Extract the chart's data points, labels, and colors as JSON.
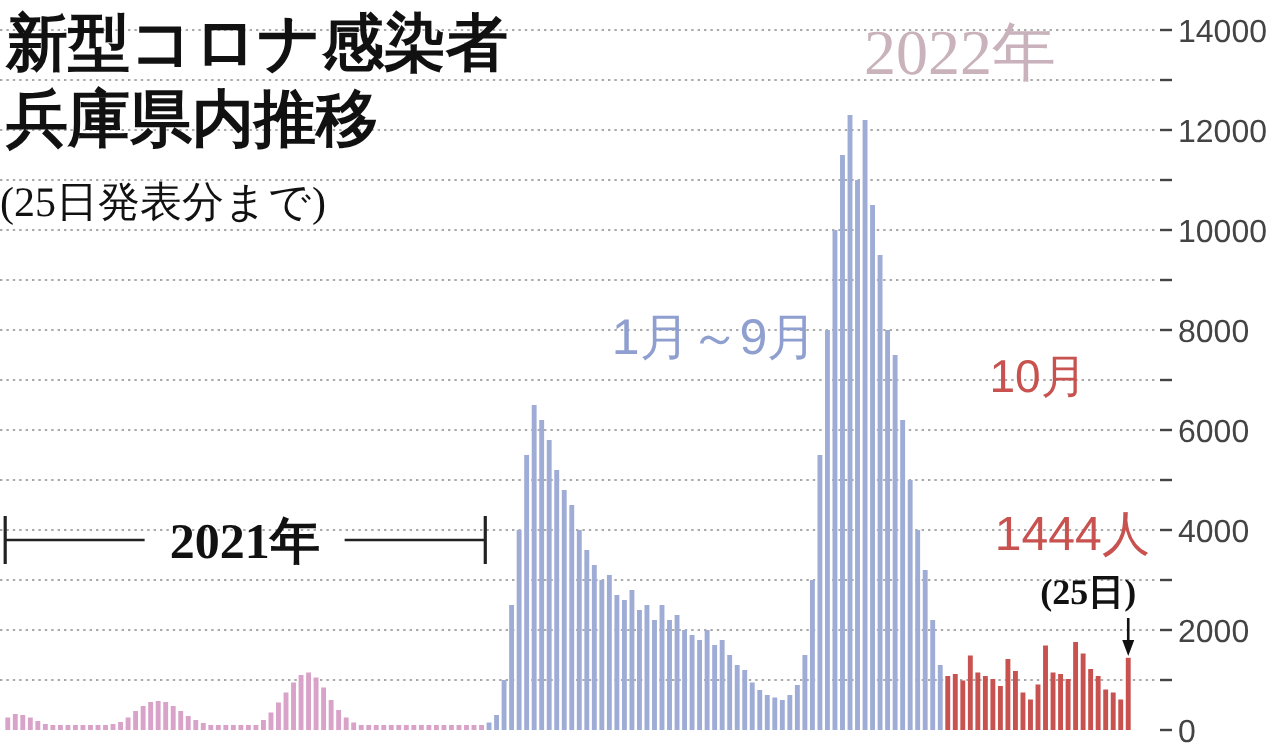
{
  "chart_data": {
    "type": "bar",
    "title": "新型コロナ感染者兵庫県内推移",
    "subtitle": "(25日発表分まで)",
    "annotations": [
      "2021年",
      "1月～9月",
      "2022年",
      "10月",
      "(25日)"
    ],
    "categories": [
      null,
      null,
      null,
      null,
      null,
      null,
      null,
      null,
      null,
      null,
      null,
      null,
      null,
      null,
      null,
      null,
      null,
      null,
      null,
      null,
      null,
      null,
      null,
      null,
      null,
      null,
      null,
      null,
      null,
      null,
      null,
      null,
      null,
      null,
      null,
      null,
      null,
      null,
      null,
      null,
      null,
      null,
      null,
      null,
      null,
      null,
      null,
      null,
      null,
      null,
      null,
      null,
      null,
      null,
      null,
      null,
      null,
      null,
      null,
      null,
      null,
      null,
      null,
      null,
      null,
      null,
      null,
      null,
      null,
      null,
      null,
      null,
      null,
      null,
      null,
      null,
      null,
      null,
      null,
      null,
      null,
      null,
      null,
      null,
      null,
      null,
      null,
      null,
      null,
      null,
      null,
      null,
      null,
      null,
      null,
      null,
      null,
      null,
      null,
      null,
      null,
      null,
      null,
      null,
      null,
      null,
      null,
      null,
      null,
      null,
      null,
      null,
      null,
      null,
      null,
      null,
      null,
      null,
      null,
      null,
      null,
      null,
      null,
      null,
      null,
      null,
      null,
      null,
      null,
      null,
      null,
      null,
      null,
      null,
      null,
      null,
      null,
      null,
      null,
      null,
      null,
      null,
      null,
      null,
      null,
      null,
      null,
      null,
      null,
      null
    ],
    "values": [
      250,
      320,
      300,
      250,
      180,
      120,
      100,
      100,
      100,
      100,
      100,
      100,
      100,
      100,
      120,
      160,
      250,
      380,
      480,
      560,
      580,
      560,
      480,
      380,
      280,
      200,
      140,
      100,
      100,
      100,
      100,
      100,
      100,
      100,
      200,
      350,
      550,
      750,
      950,
      1100,
      1150,
      1050,
      850,
      600,
      400,
      250,
      150,
      100,
      100,
      100,
      100,
      100,
      100,
      100,
      100,
      100,
      100,
      100,
      100,
      100,
      100,
      100,
      100,
      100,
      150,
      300,
      1000,
      2500,
      4000,
      5500,
      6500,
      6200,
      5800,
      5200,
      4800,
      4500,
      4000,
      3600,
      3300,
      3000,
      3100,
      2700,
      2600,
      2800,
      2400,
      2500,
      2200,
      2500,
      2200,
      2300,
      2000,
      1900,
      1800,
      2000,
      1700,
      1800,
      1500,
      1300,
      1200,
      950,
      800,
      700,
      650,
      600,
      700,
      900,
      1500,
      3000,
      5500,
      8000,
      10000,
      11500,
      12300,
      11000,
      12200,
      10500,
      9500,
      8000,
      7500,
      6200,
      5000,
      4000,
      3200,
      2200,
      1300,
      1080,
      1120,
      990,
      1490,
      1150,
      1080,
      1020,
      880,
      1420,
      1180,
      750,
      610,
      910,
      1690,
      1150,
      1120,
      1020,
      1760,
      1530,
      1220,
      1080,
      810,
      750,
      610,
      1444
    ],
    "colors": [
      "#d9a3c9",
      "#d9a3c9",
      "#d9a3c9",
      "#d9a3c9",
      "#d9a3c9",
      "#d9a3c9",
      "#d9a3c9",
      "#d9a3c9",
      "#d9a3c9",
      "#d9a3c9",
      "#d9a3c9",
      "#d9a3c9",
      "#d9a3c9",
      "#d9a3c9",
      "#d9a3c9",
      "#d9a3c9",
      "#d9a3c9",
      "#d9a3c9",
      "#d9a3c9",
      "#d9a3c9",
      "#d9a3c9",
      "#d9a3c9",
      "#d9a3c9",
      "#d9a3c9",
      "#d9a3c9",
      "#d9a3c9",
      "#d9a3c9",
      "#d9a3c9",
      "#d9a3c9",
      "#d9a3c9",
      "#d9a3c9",
      "#d9a3c9",
      "#d9a3c9",
      "#d9a3c9",
      "#d9a3c9",
      "#d9a3c9",
      "#d9a3c9",
      "#d9a3c9",
      "#d9a3c9",
      "#d9a3c9",
      "#d9a3c9",
      "#d9a3c9",
      "#d9a3c9",
      "#d9a3c9",
      "#d9a3c9",
      "#d9a3c9",
      "#d9a3c9",
      "#d9a3c9",
      "#d9a3c9",
      "#d9a3c9",
      "#d9a3c9",
      "#d9a3c9",
      "#d9a3c9",
      "#d9a3c9",
      "#d9a3c9",
      "#d9a3c9",
      "#d9a3c9",
      "#d9a3c9",
      "#d9a3c9",
      "#d9a3c9",
      "#d9a3c9",
      "#d9a3c9",
      "#d9a3c9",
      "#d9a3c9",
      "#9fadd6",
      "#9fadd6",
      "#9fadd6",
      "#9fadd6",
      "#9fadd6",
      "#9fadd6",
      "#9fadd6",
      "#9fadd6",
      "#9fadd6",
      "#9fadd6",
      "#9fadd6",
      "#9fadd6",
      "#9fadd6",
      "#9fadd6",
      "#9fadd6",
      "#9fadd6",
      "#9fadd6",
      "#9fadd6",
      "#9fadd6",
      "#9fadd6",
      "#9fadd6",
      "#9fadd6",
      "#9fadd6",
      "#9fadd6",
      "#9fadd6",
      "#9fadd6",
      "#9fadd6",
      "#9fadd6",
      "#9fadd6",
      "#9fadd6",
      "#9fadd6",
      "#9fadd6",
      "#9fadd6",
      "#9fadd6",
      "#9fadd6",
      "#9fadd6",
      "#9fadd6",
      "#9fadd6",
      "#9fadd6",
      "#9fadd6",
      "#9fadd6",
      "#9fadd6",
      "#9fadd6",
      "#9fadd6",
      "#9fadd6",
      "#9fadd6",
      "#9fadd6",
      "#9fadd6",
      "#9fadd6",
      "#9fadd6",
      "#9fadd6",
      "#9fadd6",
      "#9fadd6",
      "#9fadd6",
      "#9fadd6",
      "#9fadd6",
      "#9fadd6",
      "#9fadd6",
      "#9fadd6",
      "#9fadd6",
      "#9fadd6",
      "#c8524f",
      "#c8524f",
      "#c8524f",
      "#c8524f",
      "#c8524f",
      "#c8524f",
      "#c8524f",
      "#c8524f",
      "#c8524f",
      "#c8524f",
      "#c8524f",
      "#c8524f",
      "#c8524f",
      "#c8524f",
      "#c8524f",
      "#c8524f",
      "#c8524f",
      "#c8524f",
      "#c8524f",
      "#c8524f",
      "#c8524f",
      "#c8524f",
      "#c8524f",
      "#c8524f",
      "#c8524f"
    ],
    "value_labels": [
      null,
      null,
      null,
      null,
      null,
      null,
      null,
      null,
      null,
      null,
      null,
      null,
      null,
      null,
      null,
      null,
      null,
      null,
      null,
      null,
      null,
      null,
      null,
      null,
      null,
      null,
      null,
      null,
      null,
      null,
      null,
      null,
      null,
      null,
      null,
      null,
      null,
      null,
      null,
      null,
      null,
      null,
      null,
      null,
      null,
      null,
      null,
      null,
      null,
      null,
      null,
      null,
      null,
      null,
      null,
      null,
      null,
      null,
      null,
      null,
      null,
      null,
      null,
      null,
      null,
      null,
      null,
      null,
      null,
      null,
      null,
      null,
      null,
      null,
      null,
      null,
      null,
      null,
      null,
      null,
      null,
      null,
      null,
      null,
      null,
      null,
      null,
      null,
      null,
      null,
      null,
      null,
      null,
      null,
      null,
      null,
      null,
      null,
      null,
      null,
      null,
      null,
      null,
      null,
      null,
      null,
      null,
      null,
      null,
      null,
      null,
      null,
      null,
      null,
      null,
      null,
      null,
      null,
      null,
      null,
      null,
      null,
      null,
      null,
      null,
      null,
      null,
      null,
      null,
      null,
      null,
      null,
      null,
      null,
      null,
      null,
      null,
      null,
      null,
      null,
      null,
      null,
      null,
      null,
      null,
      null,
      null,
      null,
      null,
      "1444人"
    ],
    "ylim": [
      0,
      14000
    ],
    "yticks": [
      0,
      {
        "value": 1000,
        "label": null
      },
      2000,
      {
        "value": 3000,
        "label": null
      },
      4000,
      {
        "value": 5000,
        "label": null
      },
      6000,
      {
        "value": 7000,
        "label": null
      },
      8000,
      {
        "value": 9000,
        "label": null
      },
      10000,
      {
        "value": 11000,
        "label": null
      },
      12000,
      {
        "value": 13000,
        "label": null
      },
      14000
    ],
    "grid": "y",
    "tick_labels": "y"
  }
}
